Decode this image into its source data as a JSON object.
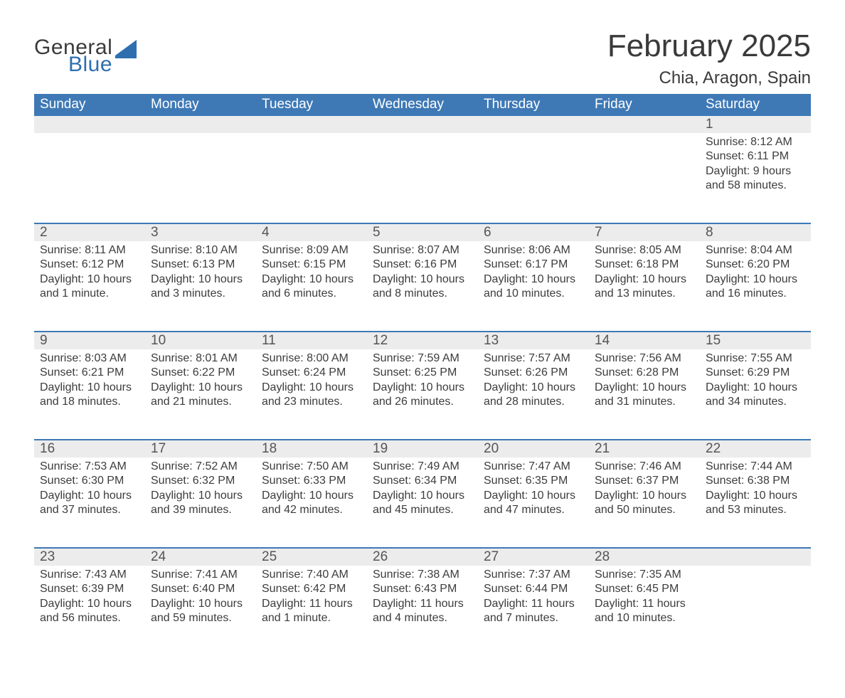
{
  "logo": {
    "general": "General",
    "blue": "Blue",
    "general_color": "#3b3b3b",
    "blue_color": "#2f6fb0",
    "sail_color": "#2f6fb0"
  },
  "header": {
    "month_title": "February 2025",
    "location": "Chia, Aragon, Spain",
    "title_fontsize": 44,
    "location_fontsize": 24
  },
  "style": {
    "dow_bg": "#3e79b6",
    "dow_fg": "#ffffff",
    "band_bg": "#ececec",
    "band_border": "#3e79b6",
    "text_color": "#3c3c3c",
    "daynum_color": "#555555",
    "day_font_size": 16,
    "dow_font_size": 19
  },
  "days_of_week": [
    "Sunday",
    "Monday",
    "Tuesday",
    "Wednesday",
    "Thursday",
    "Friday",
    "Saturday"
  ],
  "weeks": [
    [
      null,
      null,
      null,
      null,
      null,
      null,
      {
        "n": "1",
        "sunrise": "8:12 AM",
        "sunset": "6:11 PM",
        "daylight": "9 hours and 58 minutes."
      }
    ],
    [
      {
        "n": "2",
        "sunrise": "8:11 AM",
        "sunset": "6:12 PM",
        "daylight": "10 hours and 1 minute."
      },
      {
        "n": "3",
        "sunrise": "8:10 AM",
        "sunset": "6:13 PM",
        "daylight": "10 hours and 3 minutes."
      },
      {
        "n": "4",
        "sunrise": "8:09 AM",
        "sunset": "6:15 PM",
        "daylight": "10 hours and 6 minutes."
      },
      {
        "n": "5",
        "sunrise": "8:07 AM",
        "sunset": "6:16 PM",
        "daylight": "10 hours and 8 minutes."
      },
      {
        "n": "6",
        "sunrise": "8:06 AM",
        "sunset": "6:17 PM",
        "daylight": "10 hours and 10 minutes."
      },
      {
        "n": "7",
        "sunrise": "8:05 AM",
        "sunset": "6:18 PM",
        "daylight": "10 hours and 13 minutes."
      },
      {
        "n": "8",
        "sunrise": "8:04 AM",
        "sunset": "6:20 PM",
        "daylight": "10 hours and 16 minutes."
      }
    ],
    [
      {
        "n": "9",
        "sunrise": "8:03 AM",
        "sunset": "6:21 PM",
        "daylight": "10 hours and 18 minutes."
      },
      {
        "n": "10",
        "sunrise": "8:01 AM",
        "sunset": "6:22 PM",
        "daylight": "10 hours and 21 minutes."
      },
      {
        "n": "11",
        "sunrise": "8:00 AM",
        "sunset": "6:24 PM",
        "daylight": "10 hours and 23 minutes."
      },
      {
        "n": "12",
        "sunrise": "7:59 AM",
        "sunset": "6:25 PM",
        "daylight": "10 hours and 26 minutes."
      },
      {
        "n": "13",
        "sunrise": "7:57 AM",
        "sunset": "6:26 PM",
        "daylight": "10 hours and 28 minutes."
      },
      {
        "n": "14",
        "sunrise": "7:56 AM",
        "sunset": "6:28 PM",
        "daylight": "10 hours and 31 minutes."
      },
      {
        "n": "15",
        "sunrise": "7:55 AM",
        "sunset": "6:29 PM",
        "daylight": "10 hours and 34 minutes."
      }
    ],
    [
      {
        "n": "16",
        "sunrise": "7:53 AM",
        "sunset": "6:30 PM",
        "daylight": "10 hours and 37 minutes."
      },
      {
        "n": "17",
        "sunrise": "7:52 AM",
        "sunset": "6:32 PM",
        "daylight": "10 hours and 39 minutes."
      },
      {
        "n": "18",
        "sunrise": "7:50 AM",
        "sunset": "6:33 PM",
        "daylight": "10 hours and 42 minutes."
      },
      {
        "n": "19",
        "sunrise": "7:49 AM",
        "sunset": "6:34 PM",
        "daylight": "10 hours and 45 minutes."
      },
      {
        "n": "20",
        "sunrise": "7:47 AM",
        "sunset": "6:35 PM",
        "daylight": "10 hours and 47 minutes."
      },
      {
        "n": "21",
        "sunrise": "7:46 AM",
        "sunset": "6:37 PM",
        "daylight": "10 hours and 50 minutes."
      },
      {
        "n": "22",
        "sunrise": "7:44 AM",
        "sunset": "6:38 PM",
        "daylight": "10 hours and 53 minutes."
      }
    ],
    [
      {
        "n": "23",
        "sunrise": "7:43 AM",
        "sunset": "6:39 PM",
        "daylight": "10 hours and 56 minutes."
      },
      {
        "n": "24",
        "sunrise": "7:41 AM",
        "sunset": "6:40 PM",
        "daylight": "10 hours and 59 minutes."
      },
      {
        "n": "25",
        "sunrise": "7:40 AM",
        "sunset": "6:42 PM",
        "daylight": "11 hours and 1 minute."
      },
      {
        "n": "26",
        "sunrise": "7:38 AM",
        "sunset": "6:43 PM",
        "daylight": "11 hours and 4 minutes."
      },
      {
        "n": "27",
        "sunrise": "7:37 AM",
        "sunset": "6:44 PM",
        "daylight": "11 hours and 7 minutes."
      },
      {
        "n": "28",
        "sunrise": "7:35 AM",
        "sunset": "6:45 PM",
        "daylight": "11 hours and 10 minutes."
      },
      null
    ]
  ],
  "labels": {
    "sunrise": "Sunrise: ",
    "sunset": "Sunset: ",
    "daylight": "Daylight: "
  }
}
